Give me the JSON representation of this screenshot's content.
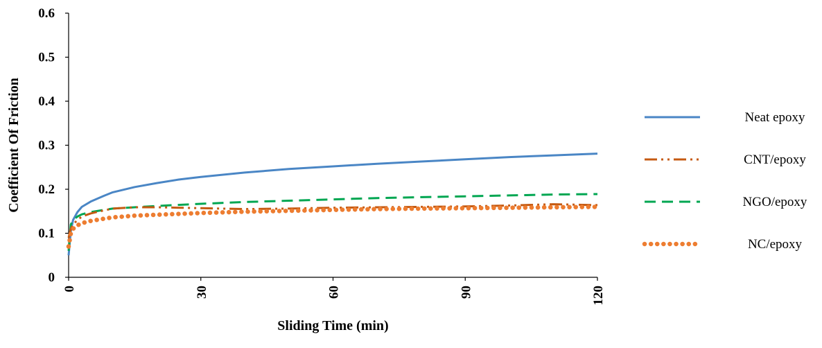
{
  "chart_data": {
    "type": "line",
    "title": "",
    "xlabel": "Sliding Time (min)",
    "ylabel": "Coefficient Of  Friction",
    "xlim": [
      0,
      120
    ],
    "ylim": [
      0,
      0.6
    ],
    "x_ticks": [
      "0",
      "30",
      "60",
      "90",
      "120"
    ],
    "y_ticks": [
      "0",
      "0.1",
      "0.2",
      "0.3",
      "0.4",
      "0.5",
      "0.6"
    ],
    "grid": false,
    "legend_position": "right",
    "series": [
      {
        "name": "Neat epoxy",
        "color": "#4a86c5",
        "style": "solid",
        "points": [
          [
            0,
            0.05
          ],
          [
            0.5,
            0.105
          ],
          [
            1,
            0.13
          ],
          [
            2,
            0.148
          ],
          [
            3,
            0.16
          ],
          [
            5,
            0.172
          ],
          [
            8,
            0.185
          ],
          [
            10,
            0.193
          ],
          [
            15,
            0.205
          ],
          [
            20,
            0.214
          ],
          [
            25,
            0.222
          ],
          [
            30,
            0.228
          ],
          [
            40,
            0.238
          ],
          [
            50,
            0.246
          ],
          [
            60,
            0.252
          ],
          [
            70,
            0.258
          ],
          [
            80,
            0.263
          ],
          [
            90,
            0.268
          ],
          [
            100,
            0.273
          ],
          [
            110,
            0.277
          ],
          [
            120,
            0.281
          ]
        ]
      },
      {
        "name": "CNT/epoxy",
        "color": "#c55a11",
        "style": "dash-dot-dot",
        "points": [
          [
            0,
            0.09
          ],
          [
            0.5,
            0.11
          ],
          [
            1,
            0.12
          ],
          [
            2,
            0.13
          ],
          [
            3,
            0.138
          ],
          [
            5,
            0.145
          ],
          [
            8,
            0.152
          ],
          [
            10,
            0.156
          ],
          [
            15,
            0.159
          ],
          [
            20,
            0.159
          ],
          [
            30,
            0.157
          ],
          [
            40,
            0.155
          ],
          [
            50,
            0.156
          ],
          [
            60,
            0.158
          ],
          [
            70,
            0.159
          ],
          [
            80,
            0.16
          ],
          [
            90,
            0.161
          ],
          [
            100,
            0.163
          ],
          [
            110,
            0.166
          ],
          [
            120,
            0.164
          ]
        ]
      },
      {
        "name": "NGO/epoxy",
        "color": "#00a651",
        "style": "dashed",
        "points": [
          [
            0,
            0.06
          ],
          [
            0.5,
            0.12
          ],
          [
            1,
            0.13
          ],
          [
            2,
            0.138
          ],
          [
            3,
            0.143
          ],
          [
            5,
            0.148
          ],
          [
            8,
            0.153
          ],
          [
            10,
            0.156
          ],
          [
            15,
            0.159
          ],
          [
            20,
            0.162
          ],
          [
            30,
            0.167
          ],
          [
            40,
            0.171
          ],
          [
            50,
            0.174
          ],
          [
            60,
            0.177
          ],
          [
            70,
            0.18
          ],
          [
            80,
            0.182
          ],
          [
            90,
            0.184
          ],
          [
            100,
            0.186
          ],
          [
            110,
            0.188
          ],
          [
            120,
            0.189
          ]
        ]
      },
      {
        "name": "NC/epoxy",
        "color": "#ed7d31",
        "style": "dotted",
        "points": [
          [
            0,
            0.07
          ],
          [
            0.5,
            0.1
          ],
          [
            1,
            0.11
          ],
          [
            2,
            0.118
          ],
          [
            3,
            0.123
          ],
          [
            5,
            0.128
          ],
          [
            8,
            0.133
          ],
          [
            10,
            0.136
          ],
          [
            15,
            0.14
          ],
          [
            20,
            0.142
          ],
          [
            30,
            0.146
          ],
          [
            40,
            0.149
          ],
          [
            50,
            0.151
          ],
          [
            60,
            0.153
          ],
          [
            70,
            0.155
          ],
          [
            80,
            0.156
          ],
          [
            90,
            0.157
          ],
          [
            100,
            0.158
          ],
          [
            110,
            0.159
          ],
          [
            120,
            0.16
          ]
        ]
      }
    ]
  }
}
